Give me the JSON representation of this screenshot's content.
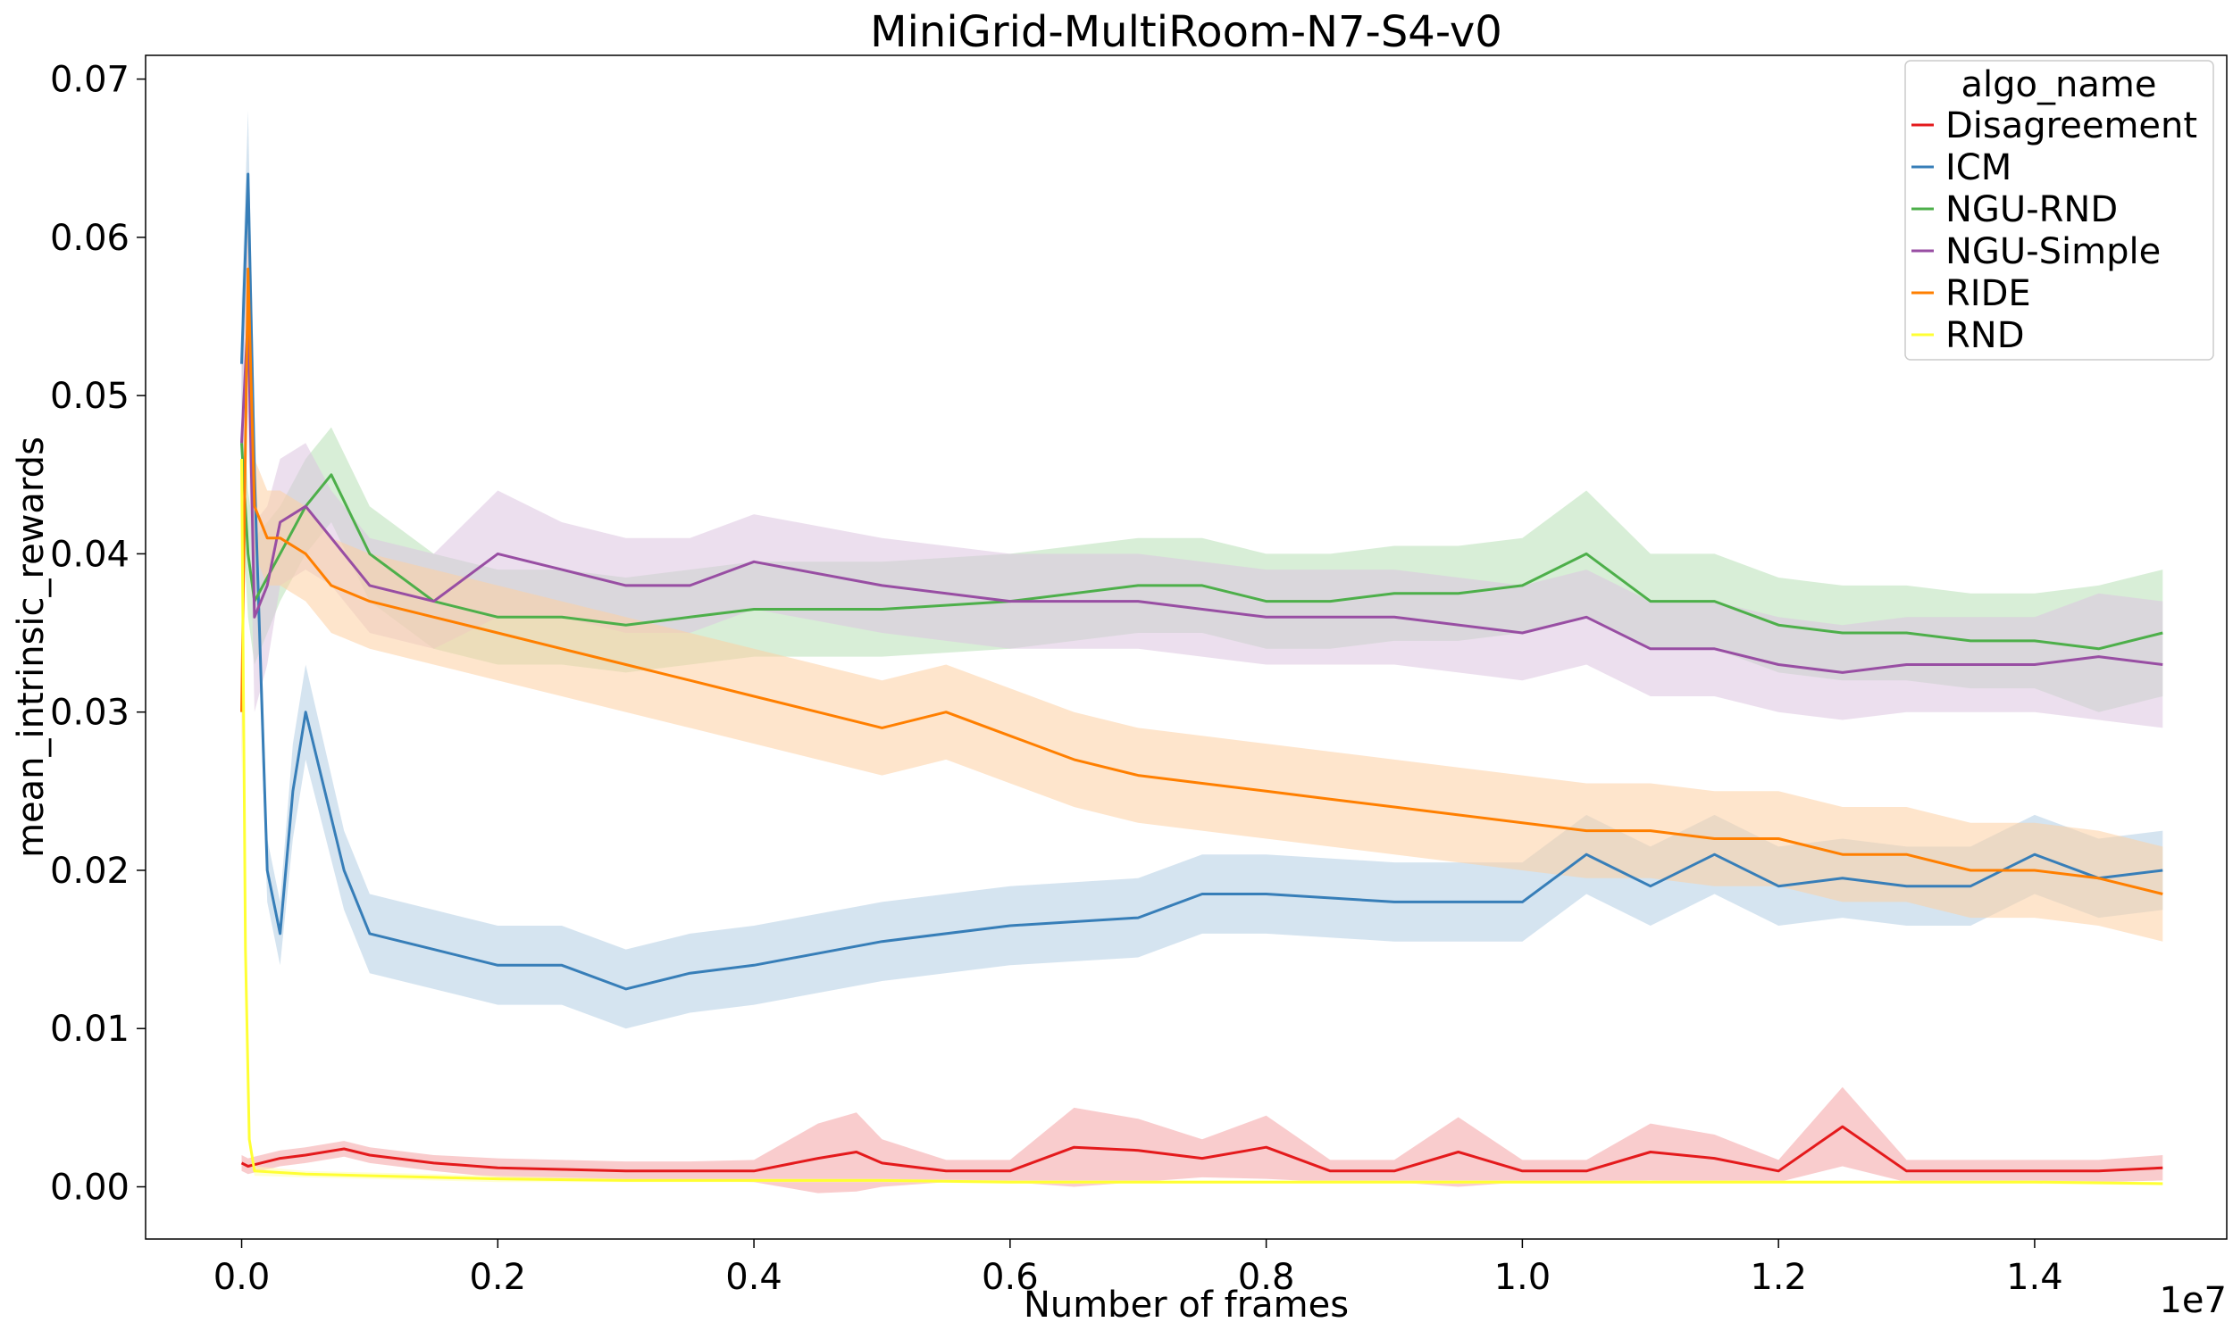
{
  "chart_data": {
    "type": "line",
    "title": "MiniGrid-MultiRoom-N7-S4-v0",
    "xlabel": "Number of frames",
    "ylabel": "mean_intrinsic_rewards",
    "x_offset_label": "1e7",
    "xlim": [
      -0.075,
      1.55
    ],
    "ylim": [
      -0.0033,
      0.0715
    ],
    "x_ticks": [
      0.0,
      0.2,
      0.4,
      0.6,
      0.8,
      1.0,
      1.2,
      1.4
    ],
    "x_tick_labels": [
      "0.0",
      "0.2",
      "0.4",
      "0.6",
      "0.8",
      "1.0",
      "1.2",
      "1.4"
    ],
    "y_ticks": [
      0.0,
      0.01,
      0.02,
      0.03,
      0.04,
      0.05,
      0.06,
      0.07
    ],
    "y_tick_labels": [
      "0.00",
      "0.01",
      "0.02",
      "0.03",
      "0.04",
      "0.05",
      "0.06",
      "0.07"
    ],
    "grid": false,
    "legend": {
      "title": "algo_name",
      "placement": "top-right"
    },
    "series": [
      {
        "name": "Disagreement",
        "color": "#e41a1c",
        "band_color": "#f4a3a4",
        "x": [
          0.0,
          0.005,
          0.01,
          0.03,
          0.05,
          0.08,
          0.1,
          0.15,
          0.2,
          0.25,
          0.3,
          0.35,
          0.4,
          0.45,
          0.48,
          0.5,
          0.55,
          0.6,
          0.65,
          0.7,
          0.75,
          0.8,
          0.85,
          0.9,
          0.95,
          1.0,
          1.05,
          1.1,
          1.15,
          1.2,
          1.25,
          1.3,
          1.35,
          1.4,
          1.45,
          1.5
        ],
        "y": [
          0.0015,
          0.0013,
          0.0014,
          0.0018,
          0.002,
          0.0024,
          0.002,
          0.0015,
          0.0012,
          0.0011,
          0.001,
          0.001,
          0.001,
          0.0018,
          0.0022,
          0.0015,
          0.001,
          0.001,
          0.0025,
          0.0023,
          0.0018,
          0.0025,
          0.001,
          0.001,
          0.0022,
          0.001,
          0.001,
          0.0022,
          0.0018,
          0.001,
          0.0038,
          0.001,
          0.001,
          0.001,
          0.001,
          0.0012
        ],
        "spread": [
          0.0005,
          0.0005,
          0.0005,
          0.0005,
          0.0005,
          0.0005,
          0.0005,
          0.0005,
          0.0006,
          0.0006,
          0.0006,
          0.0006,
          0.0007,
          0.0022,
          0.0025,
          0.0015,
          0.0007,
          0.0007,
          0.0025,
          0.002,
          0.0012,
          0.002,
          0.0007,
          0.0007,
          0.0022,
          0.0007,
          0.0007,
          0.0018,
          0.0015,
          0.0007,
          0.0025,
          0.0007,
          0.0007,
          0.0007,
          0.0007,
          0.0008
        ]
      },
      {
        "name": "ICM",
        "color": "#377eb8",
        "band_color": "#b3cde3",
        "x": [
          0.0,
          0.005,
          0.01,
          0.02,
          0.03,
          0.04,
          0.05,
          0.08,
          0.1,
          0.15,
          0.2,
          0.25,
          0.3,
          0.35,
          0.4,
          0.5,
          0.6,
          0.7,
          0.75,
          0.8,
          0.9,
          1.0,
          1.05,
          1.1,
          1.15,
          1.2,
          1.25,
          1.3,
          1.35,
          1.4,
          1.45,
          1.5
        ],
        "y": [
          0.052,
          0.064,
          0.045,
          0.02,
          0.016,
          0.025,
          0.03,
          0.02,
          0.016,
          0.015,
          0.014,
          0.014,
          0.0125,
          0.0135,
          0.014,
          0.0155,
          0.0165,
          0.017,
          0.0185,
          0.0185,
          0.018,
          0.018,
          0.021,
          0.019,
          0.021,
          0.019,
          0.0195,
          0.019,
          0.019,
          0.021,
          0.0195,
          0.02
        ],
        "spread": [
          0.004,
          0.004,
          0.004,
          0.002,
          0.002,
          0.003,
          0.003,
          0.0025,
          0.0025,
          0.0025,
          0.0025,
          0.0025,
          0.0025,
          0.0025,
          0.0025,
          0.0025,
          0.0025,
          0.0025,
          0.0025,
          0.0025,
          0.0025,
          0.0025,
          0.0025,
          0.0025,
          0.0025,
          0.0025,
          0.0025,
          0.0025,
          0.0025,
          0.0025,
          0.0025,
          0.0025
        ]
      },
      {
        "name": "NGU-RND",
        "color": "#4daf4a",
        "band_color": "#b8e0b6",
        "x": [
          0.0,
          0.005,
          0.01,
          0.03,
          0.05,
          0.07,
          0.1,
          0.15,
          0.2,
          0.25,
          0.3,
          0.35,
          0.4,
          0.5,
          0.6,
          0.7,
          0.75,
          0.8,
          0.85,
          0.9,
          0.95,
          1.0,
          1.05,
          1.1,
          1.15,
          1.2,
          1.25,
          1.3,
          1.35,
          1.4,
          1.45,
          1.5
        ],
        "y": [
          0.047,
          0.04,
          0.037,
          0.04,
          0.043,
          0.045,
          0.04,
          0.037,
          0.036,
          0.036,
          0.0355,
          0.036,
          0.0365,
          0.0365,
          0.037,
          0.038,
          0.038,
          0.037,
          0.037,
          0.0375,
          0.0375,
          0.038,
          0.04,
          0.037,
          0.037,
          0.0355,
          0.035,
          0.035,
          0.0345,
          0.0345,
          0.034,
          0.035
        ],
        "spread": [
          0.004,
          0.004,
          0.004,
          0.003,
          0.003,
          0.003,
          0.003,
          0.003,
          0.003,
          0.003,
          0.003,
          0.003,
          0.003,
          0.003,
          0.003,
          0.003,
          0.003,
          0.003,
          0.003,
          0.003,
          0.003,
          0.003,
          0.004,
          0.003,
          0.003,
          0.003,
          0.003,
          0.003,
          0.003,
          0.003,
          0.004,
          0.004
        ]
      },
      {
        "name": "NGU-Simple",
        "color": "#984ea3",
        "band_color": "#dcc4e0",
        "x": [
          0.0,
          0.005,
          0.01,
          0.02,
          0.03,
          0.05,
          0.07,
          0.1,
          0.15,
          0.2,
          0.25,
          0.3,
          0.35,
          0.4,
          0.5,
          0.6,
          0.7,
          0.8,
          0.9,
          1.0,
          1.05,
          1.1,
          1.15,
          1.2,
          1.25,
          1.3,
          1.35,
          1.4,
          1.45,
          1.5
        ],
        "y": [
          0.047,
          0.055,
          0.036,
          0.038,
          0.042,
          0.043,
          0.041,
          0.038,
          0.037,
          0.04,
          0.039,
          0.038,
          0.038,
          0.0395,
          0.038,
          0.037,
          0.037,
          0.036,
          0.036,
          0.035,
          0.036,
          0.034,
          0.034,
          0.033,
          0.0325,
          0.033,
          0.033,
          0.033,
          0.0335,
          0.033
        ],
        "spread": [
          0.005,
          0.006,
          0.006,
          0.005,
          0.004,
          0.004,
          0.003,
          0.003,
          0.003,
          0.004,
          0.003,
          0.003,
          0.003,
          0.003,
          0.003,
          0.003,
          0.003,
          0.003,
          0.003,
          0.003,
          0.003,
          0.003,
          0.003,
          0.003,
          0.003,
          0.003,
          0.003,
          0.003,
          0.004,
          0.004
        ]
      },
      {
        "name": "RIDE",
        "color": "#ff7f00",
        "band_color": "#fdd0a2",
        "x": [
          0.0,
          0.005,
          0.01,
          0.02,
          0.03,
          0.05,
          0.07,
          0.1,
          0.15,
          0.2,
          0.25,
          0.3,
          0.35,
          0.4,
          0.45,
          0.5,
          0.55,
          0.6,
          0.65,
          0.7,
          0.75,
          0.8,
          0.85,
          0.9,
          0.95,
          1.0,
          1.05,
          1.1,
          1.15,
          1.2,
          1.25,
          1.3,
          1.35,
          1.4,
          1.45,
          1.5
        ],
        "y": [
          0.03,
          0.058,
          0.043,
          0.041,
          0.041,
          0.04,
          0.038,
          0.037,
          0.036,
          0.035,
          0.034,
          0.033,
          0.032,
          0.031,
          0.03,
          0.029,
          0.03,
          0.0285,
          0.027,
          0.026,
          0.0255,
          0.025,
          0.0245,
          0.024,
          0.0235,
          0.023,
          0.0225,
          0.0225,
          0.022,
          0.022,
          0.021,
          0.021,
          0.02,
          0.02,
          0.0195,
          0.0185
        ],
        "spread": [
          0.004,
          0.004,
          0.003,
          0.003,
          0.003,
          0.003,
          0.003,
          0.003,
          0.003,
          0.003,
          0.003,
          0.003,
          0.003,
          0.003,
          0.003,
          0.003,
          0.003,
          0.003,
          0.003,
          0.003,
          0.003,
          0.003,
          0.003,
          0.003,
          0.003,
          0.003,
          0.003,
          0.003,
          0.003,
          0.003,
          0.003,
          0.003,
          0.003,
          0.003,
          0.003,
          0.003
        ]
      },
      {
        "name": "RND",
        "color": "#ffff33",
        "band_color": "#ffffb3",
        "x": [
          0.0,
          0.003,
          0.006,
          0.01,
          0.05,
          0.1,
          0.15,
          0.2,
          0.3,
          0.4,
          0.5,
          0.6,
          0.7,
          0.8,
          0.9,
          1.0,
          1.1,
          1.2,
          1.3,
          1.4,
          1.5
        ],
        "y": [
          0.046,
          0.015,
          0.003,
          0.001,
          0.0008,
          0.0007,
          0.0006,
          0.0005,
          0.0004,
          0.0004,
          0.0004,
          0.0003,
          0.0003,
          0.0003,
          0.0003,
          0.0003,
          0.0003,
          0.0003,
          0.0003,
          0.0003,
          0.0002
        ],
        "spread": [
          0.002,
          0.001,
          0.0005,
          0.0003,
          0.0002,
          0.0002,
          0.0002,
          0.0002,
          0.0001,
          0.0001,
          0.0001,
          0.0001,
          0.0001,
          0.0001,
          0.0001,
          0.0001,
          0.0001,
          0.0001,
          0.0001,
          0.0001,
          0.0001
        ]
      }
    ]
  }
}
